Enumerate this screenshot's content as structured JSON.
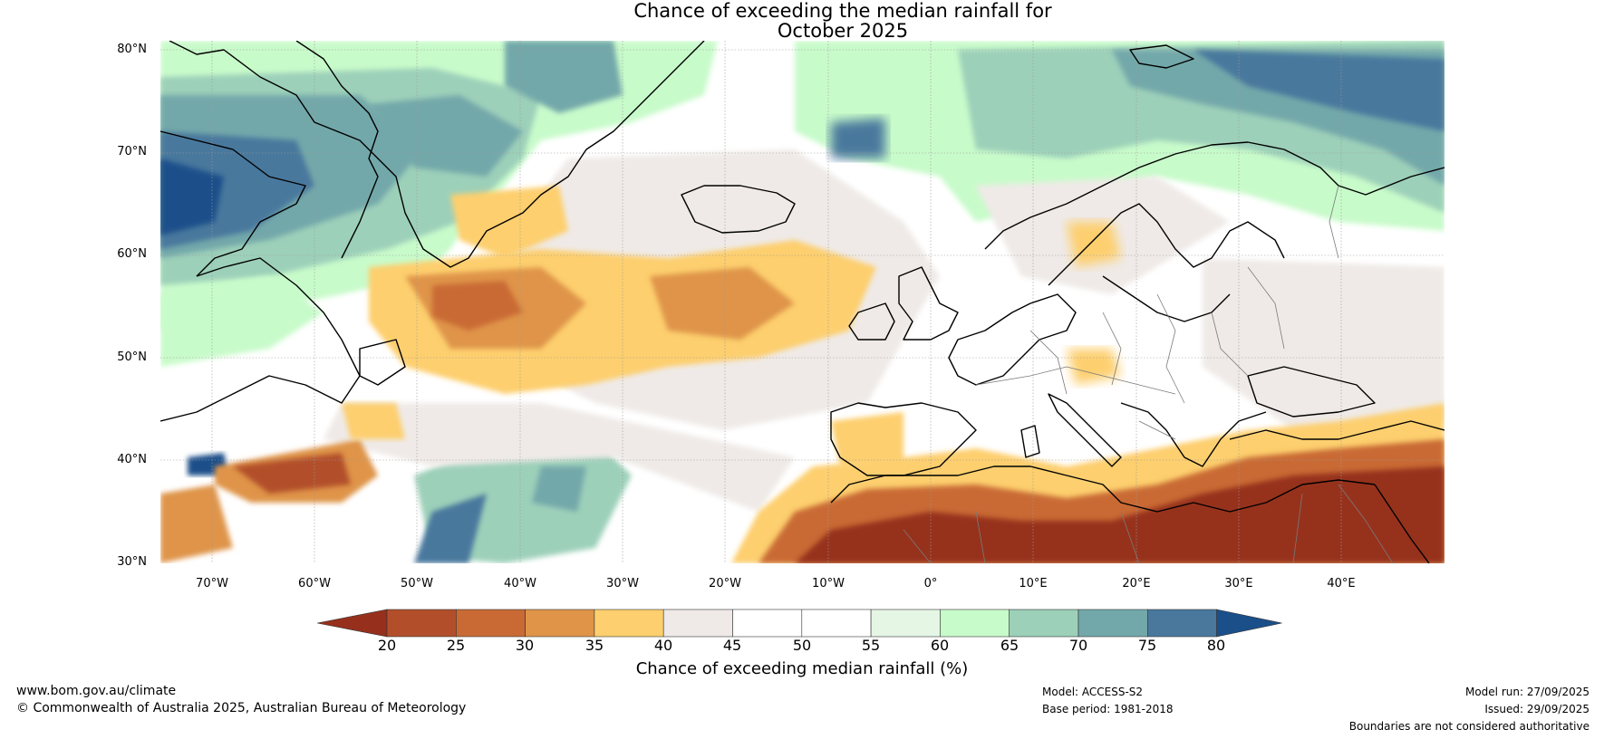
{
  "title": {
    "line1": "Chance of exceeding the median rainfall for",
    "line2": "October 2025"
  },
  "map": {
    "lat_labels": [
      "80°N",
      "70°N",
      "60°N",
      "50°N",
      "40°N",
      "30°N"
    ],
    "lon_labels": [
      "70°W",
      "60°W",
      "50°W",
      "40°W",
      "30°W",
      "20°W",
      "10°W",
      "0°",
      "10°E",
      "20°E",
      "30°E",
      "40°E"
    ],
    "extent": {
      "lon_min": -75,
      "lon_max": 50,
      "lat_min": 30,
      "lat_max": 81
    },
    "colors": {
      "c20": "#96301c",
      "c25": "#b24f2a",
      "c30": "#c96a35",
      "c35": "#df9448",
      "c40": "#fdcf6e",
      "c45": "#efeae7",
      "c50": "#ffffff",
      "c55": "#ffffff",
      "c60": "#e5f6e5",
      "c65": "#c8fbca",
      "c70": "#9dd0b9",
      "c75": "#73a8aa",
      "c80": "#4a789d",
      "c85": "#1b4f8a"
    }
  },
  "colorbar": {
    "ticks": [
      "20",
      "25",
      "30",
      "35",
      "40",
      "45",
      "50",
      "55",
      "60",
      "65",
      "70",
      "75",
      "80"
    ],
    "label": "Chance of exceeding median rainfall (%)",
    "colors": [
      "#b24f2a",
      "#c96a35",
      "#df9448",
      "#fdcf6e",
      "#efeae7",
      "#ffffff",
      "#ffffff",
      "#e5f6e5",
      "#c8fbca",
      "#9dd0b9",
      "#73a8aa",
      "#4a789d"
    ],
    "under_color": "#96301c",
    "over_color": "#1b4f8a"
  },
  "footer": {
    "website": "www.bom.gov.au/climate",
    "copyright": "© Commonwealth of Australia 2025, Australian Bureau of Meteorology",
    "model": "Model: ACCESS-S2",
    "base_period": "Base period: 1981-2018",
    "model_run": "Model run: 27/09/2025",
    "issued": "Issued: 29/09/2025",
    "disclaimer": "Boundaries are not considered authoritative"
  }
}
